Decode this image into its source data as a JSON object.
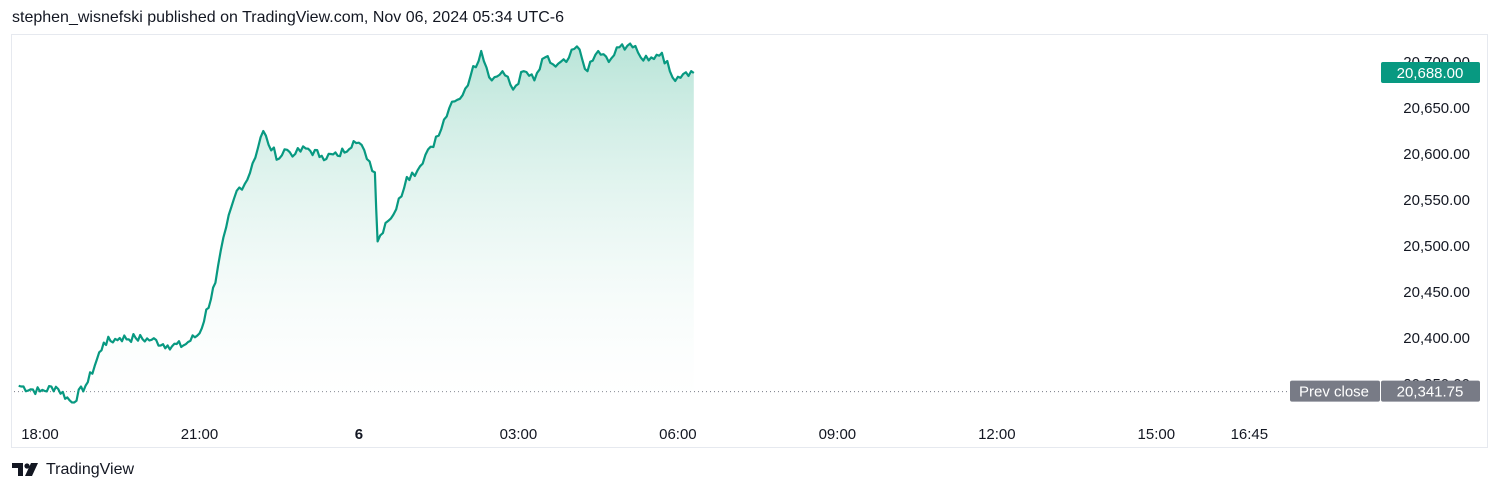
{
  "header": {
    "text": "stephen_wisnefski published on TradingView.com, Nov 06, 2024 05:34 UTC-6"
  },
  "footer": {
    "brand": "TradingView",
    "logo_icon": "tradingview-logo-icon"
  },
  "colors": {
    "line": "#089981",
    "fill_top": "#b5e3d6",
    "fill_bottom": "#ffffff",
    "last_price_bg": "#089981",
    "prev_close_bg": "#787b86",
    "axis_text": "#131722",
    "frame": "#e6e9ef"
  },
  "chart_data": {
    "type": "area",
    "title": "",
    "x_ticks": [
      {
        "label": "18:00",
        "t": 0
      },
      {
        "label": "21:00",
        "t": 3
      },
      {
        "label": "6",
        "t": 6,
        "bold": true
      },
      {
        "label": "03:00",
        "t": 9
      },
      {
        "label": "06:00",
        "t": 12
      },
      {
        "label": "09:00",
        "t": 15
      },
      {
        "label": "12:00",
        "t": 18
      },
      {
        "label": "15:00",
        "t": 21
      },
      {
        "label": "16:45",
        "t": 22.75
      }
    ],
    "y_ticks": [
      "20,700.00",
      "20,650.00",
      "20,600.00",
      "20,550.00",
      "20,500.00",
      "20,450.00",
      "20,400.00",
      "20,350.00"
    ],
    "y_tick_values": [
      20700,
      20650,
      20600,
      20550,
      20500,
      20450,
      20400,
      20350
    ],
    "xlim": [
      -0.4,
      23.5
    ],
    "ylim": [
      20300,
      20730
    ],
    "last_price": {
      "label": "20,688.00",
      "value": 20688
    },
    "prev_close": {
      "label": "Prev close",
      "value_label": "20,341.75",
      "value": 20341.75
    },
    "series": [
      {
        "t": [
          -0.4,
          0,
          0.3,
          0.6,
          0.9,
          1.2,
          1.5,
          1.8,
          2.1,
          2.4,
          2.7,
          3.0,
          3.3,
          3.5,
          3.7,
          3.9,
          4.0,
          4.2,
          4.3,
          4.5,
          4.6,
          4.8,
          5.0,
          5.3,
          5.6,
          5.9,
          6.1,
          6.3,
          6.35,
          6.5,
          6.7,
          6.9,
          7.1,
          7.3,
          7.5,
          7.7,
          7.9,
          8.1,
          8.3,
          8.5,
          8.7,
          8.9,
          9.1,
          9.3,
          9.5,
          9.7,
          9.9,
          10.1,
          10.3,
          10.5,
          10.7,
          10.9,
          11.1,
          11.3,
          11.5,
          11.7,
          11.9,
          12.1,
          12.3
        ],
        "y": [
          20348,
          20342,
          20347,
          20330,
          20352,
          20395,
          20400,
          20400,
          20398,
          20392,
          20392,
          20405,
          20460,
          20520,
          20560,
          20572,
          20590,
          20625,
          20610,
          20595,
          20605,
          20600,
          20606,
          20598,
          20598,
          20614,
          20604,
          20580,
          20505,
          20525,
          20540,
          20575,
          20582,
          20605,
          20620,
          20650,
          20660,
          20685,
          20712,
          20680,
          20690,
          20670,
          20690,
          20680,
          20705,
          20695,
          20700,
          20717,
          20690,
          20712,
          20700,
          20716,
          20720,
          20705,
          20705,
          20710,
          20683,
          20687,
          20688
        ]
      }
    ]
  }
}
